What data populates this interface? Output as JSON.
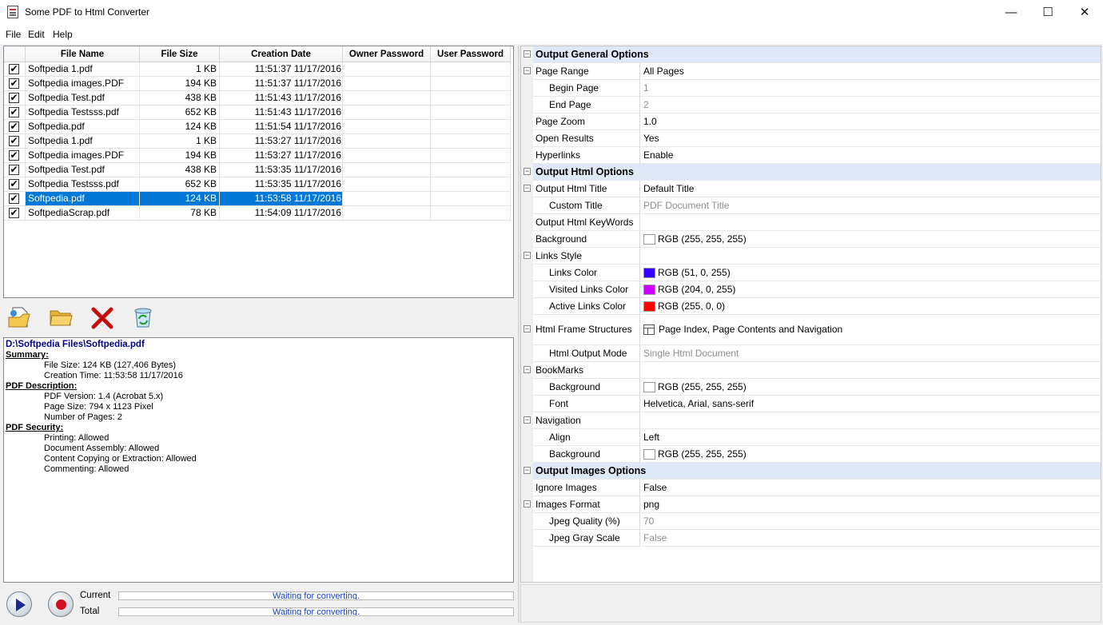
{
  "window": {
    "title": "Some PDF to Html Converter",
    "minimize": "—",
    "maximize": "☐",
    "close": "✕"
  },
  "menu": [
    {
      "label": "File"
    },
    {
      "label": "Edit"
    },
    {
      "label": "Help"
    }
  ],
  "filelist": {
    "columns": {
      "name": "File Name",
      "size": "File Size",
      "date": "Creation Date",
      "owner": "Owner Password",
      "user": "User Password"
    },
    "rows": [
      {
        "name": "Softpedia 1.pdf",
        "size": "1 KB",
        "date": "11:51:37 11/17/2016",
        "checked": true
      },
      {
        "name": "Softpedia images.PDF",
        "size": "194 KB",
        "date": "11:51:37 11/17/2016",
        "checked": true
      },
      {
        "name": "Softpedia Test.pdf",
        "size": "438 KB",
        "date": "11:51:43 11/17/2016",
        "checked": true
      },
      {
        "name": "Softpedia Testsss.pdf",
        "size": "652 KB",
        "date": "11:51:43 11/17/2016",
        "checked": true
      },
      {
        "name": "Softpedia.pdf",
        "size": "124 KB",
        "date": "11:51:54 11/17/2016",
        "checked": true
      },
      {
        "name": "Softpedia 1.pdf",
        "size": "1 KB",
        "date": "11:53:27 11/17/2016",
        "checked": true
      },
      {
        "name": "Softpedia images.PDF",
        "size": "194 KB",
        "date": "11:53:27 11/17/2016",
        "checked": true
      },
      {
        "name": "Softpedia Test.pdf",
        "size": "438 KB",
        "date": "11:53:35 11/17/2016",
        "checked": true
      },
      {
        "name": "Softpedia Testsss.pdf",
        "size": "652 KB",
        "date": "11:53:35 11/17/2016",
        "checked": true
      },
      {
        "name": "Softpedia.pdf",
        "size": "124 KB",
        "date": "11:53:58 11/17/2016",
        "checked": true,
        "selected": true
      },
      {
        "name": "SoftpediaScrap.pdf",
        "size": "78 KB",
        "date": "11:54:09 11/17/2016",
        "checked": true
      }
    ]
  },
  "details": {
    "path": "D:\\Softpedia Files\\Softpedia.pdf",
    "sections": [
      {
        "title": "Summary:",
        "items": [
          "File Size: 124 KB (127,406 Bytes)",
          "Creation Time: 11:53:58 11/17/2016"
        ]
      },
      {
        "title": "PDF Description:",
        "items": [
          "PDF Version: 1.4 (Acrobat 5.x)",
          "Page Size: 794 x 1123 Pixel",
          "Number of Pages: 2"
        ]
      },
      {
        "title": "PDF Security:",
        "items": [
          "Printing: Allowed",
          "Document Assembly: Allowed",
          "Content Copying or Extraction: Allowed",
          "Commenting: Allowed"
        ]
      }
    ]
  },
  "progress": {
    "current_label": "Current",
    "total_label": "Total",
    "current_status": "Waiting for converting.",
    "total_status": "Waiting for converting."
  },
  "properties": [
    {
      "kind": "cat",
      "name": "Output General Options"
    },
    {
      "kind": "prop",
      "level": 1,
      "exp": true,
      "name": "Page Range",
      "value": "All Pages"
    },
    {
      "kind": "prop",
      "level": 2,
      "name": "Begin Page",
      "value": "1",
      "gray": true
    },
    {
      "kind": "prop",
      "level": 2,
      "name": "End Page",
      "value": "2",
      "gray": true
    },
    {
      "kind": "prop",
      "level": 1,
      "name": "Page Zoom",
      "value": "1.0"
    },
    {
      "kind": "prop",
      "level": 1,
      "name": "Open Results",
      "value": "Yes"
    },
    {
      "kind": "prop",
      "level": 1,
      "name": "Hyperlinks",
      "value": "Enable"
    },
    {
      "kind": "cat",
      "name": "Output Html Options"
    },
    {
      "kind": "prop",
      "level": 1,
      "exp": true,
      "name": "Output Html Title",
      "value": "Default Title"
    },
    {
      "kind": "prop",
      "level": 2,
      "name": "Custom Title",
      "value": "PDF Document Title",
      "gray": true
    },
    {
      "kind": "prop",
      "level": 1,
      "name": "Output Html KeyWords",
      "value": ""
    },
    {
      "kind": "prop",
      "level": 1,
      "name": "Background",
      "value": "RGB (255, 255, 255)",
      "color": "#ffffff"
    },
    {
      "kind": "prop",
      "level": 1,
      "exp": true,
      "name": "Links Style",
      "value": ""
    },
    {
      "kind": "prop",
      "level": 2,
      "name": "Links Color",
      "value": "RGB (51, 0, 255)",
      "color": "#3300ff"
    },
    {
      "kind": "prop",
      "level": 2,
      "name": "Visited Links Color",
      "value": "RGB (204, 0, 255)",
      "color": "#cc00ff"
    },
    {
      "kind": "prop",
      "level": 2,
      "name": "Active Links Color",
      "value": "RGB (255, 0, 0)",
      "color": "#ff0000"
    },
    {
      "kind": "prop",
      "level": 1,
      "exp": true,
      "tall": true,
      "name": "Html Frame Structures",
      "value": "Page Index, Page Contents and Navigation",
      "frame_icon": true
    },
    {
      "kind": "prop",
      "level": 2,
      "name": "Html Output Mode",
      "value": "Single Html Document",
      "gray": true
    },
    {
      "kind": "prop",
      "level": 1,
      "exp": true,
      "name": "BookMarks",
      "value": ""
    },
    {
      "kind": "prop",
      "level": 2,
      "name": "Background",
      "value": "RGB (255, 255, 255)",
      "color": "#ffffff"
    },
    {
      "kind": "prop",
      "level": 2,
      "name": "Font",
      "value": "Helvetica, Arial, sans-serif"
    },
    {
      "kind": "prop",
      "level": 1,
      "exp": true,
      "name": "Navigation",
      "value": ""
    },
    {
      "kind": "prop",
      "level": 2,
      "name": "Align",
      "value": "Left"
    },
    {
      "kind": "prop",
      "level": 2,
      "name": "Background",
      "value": "RGB (255, 255, 255)",
      "color": "#ffffff"
    },
    {
      "kind": "cat",
      "name": "Output Images Options"
    },
    {
      "kind": "prop",
      "level": 1,
      "name": "Ignore Images",
      "value": "False"
    },
    {
      "kind": "prop",
      "level": 1,
      "exp": true,
      "name": "Images Format",
      "value": "png"
    },
    {
      "kind": "prop",
      "level": 2,
      "name": "Jpeg Quality (%)",
      "value": "70",
      "gray": true
    },
    {
      "kind": "prop",
      "level": 2,
      "name": "Jpeg Gray Scale",
      "value": "False",
      "gray": true
    }
  ],
  "colors": {
    "selection": "#0078d7",
    "category_bg": "#dfe8f6",
    "path_text": "#00008b",
    "progress_text": "#1a40c0"
  },
  "icons": {
    "toolbar": [
      "add-file-icon",
      "open-folder-icon",
      "delete-icon",
      "clear-list-icon"
    ],
    "start": "play-icon",
    "stop": "record-stop-icon"
  }
}
